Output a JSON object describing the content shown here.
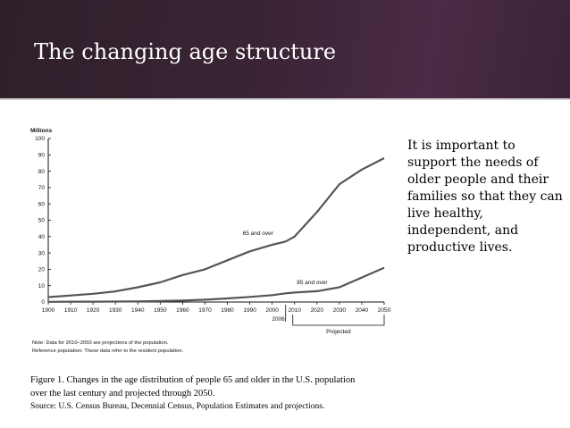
{
  "slide": {
    "title": "The changing age structure",
    "body_text": "It is important to support the needs of older people and their families so that they can live healthy, independent, and productive lives.",
    "caption_line1": "Figure 1. Changes in the age distribution of people 65 and older in the U.S. population",
    "caption_line2": "over the last century and projected through 2050.",
    "source": "Source: U.S. Census Bureau, Decennial Census, Population Estimates and projections."
  },
  "colors": {
    "header": "#3a2434",
    "title_text": "#ffffff",
    "line": "#555555"
  },
  "chart_data": {
    "type": "line",
    "title": "",
    "ylabel": "Millions",
    "xlabel": "",
    "ylim": [
      0,
      100
    ],
    "yticks": [
      0,
      10,
      20,
      30,
      40,
      50,
      60,
      70,
      80,
      90,
      100
    ],
    "x": [
      1900,
      1910,
      1920,
      1930,
      1940,
      1950,
      1960,
      1970,
      1980,
      1990,
      2000,
      2006,
      2010,
      2020,
      2030,
      2040,
      2050
    ],
    "xtick_labels": [
      "1900",
      "1910",
      "1920",
      "1930",
      "1940",
      "1950",
      "1960",
      "1970",
      "1980",
      "1990",
      "2000",
      "2010",
      "2020",
      "2030",
      "2040",
      "2050"
    ],
    "extra_tick_label": "2006",
    "series": [
      {
        "name": "65 and over",
        "values": [
          3,
          4,
          5,
          6.5,
          9,
          12,
          16.5,
          20,
          25.5,
          31,
          35,
          37,
          40,
          55,
          72,
          81,
          88
        ]
      },
      {
        "name": "85 and over",
        "values": [
          0.1,
          0.2,
          0.2,
          0.3,
          0.4,
          0.6,
          0.9,
          1.4,
          2.2,
          3.1,
          4.2,
          5.3,
          5.8,
          6.6,
          9,
          15,
          21
        ]
      }
    ],
    "projected_label": "Projected",
    "notes": [
      "Note: Data for 2010–2050 are projections of the population.",
      "Reference population: These data refer to the resident population."
    ]
  }
}
